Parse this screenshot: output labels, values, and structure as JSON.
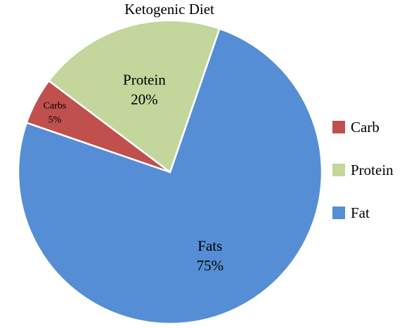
{
  "chart_data": {
    "type": "pie",
    "title": "Ketogenic Diet",
    "slices": [
      {
        "legend": "Fat",
        "label": "Fats",
        "value": 75,
        "value_label": "75%",
        "color": "#558ED5"
      },
      {
        "legend": "Carb",
        "label": "Carbs",
        "value": 5,
        "value_label": "5%",
        "color": "#C0504D"
      },
      {
        "legend": "Protein",
        "label": "Protein",
        "value": 20,
        "value_label": "20%",
        "color": "#C3D69B"
      }
    ],
    "legend_order": [
      "Carb",
      "Protein",
      "Fat"
    ],
    "legend_position": "right"
  }
}
